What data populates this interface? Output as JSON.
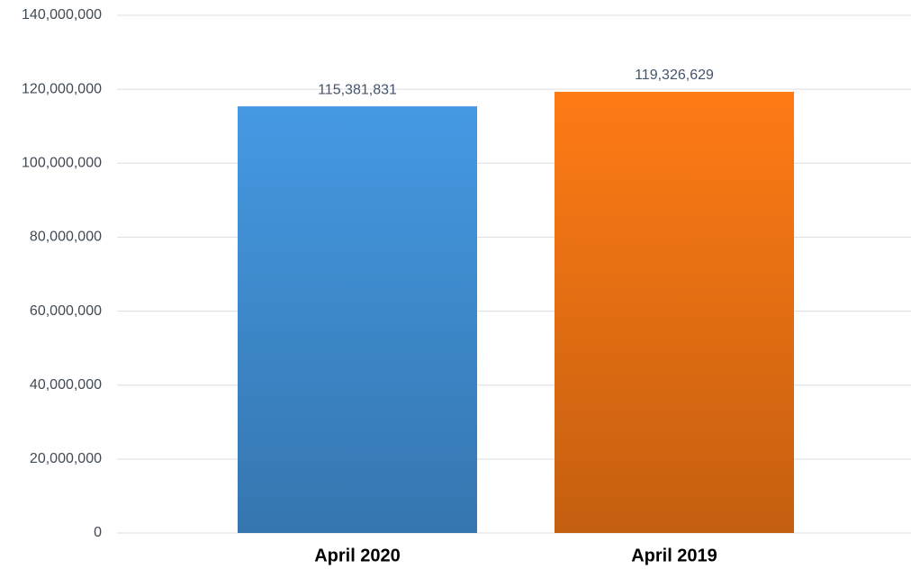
{
  "chart_data": {
    "type": "bar",
    "categories": [
      "April 2020",
      "April 2019"
    ],
    "values": [
      115381831,
      119326629
    ],
    "value_labels": [
      "115,381,831",
      "119,326,629"
    ],
    "colors": [
      "#4599e3",
      "#ff7b15"
    ],
    "ylim": [
      0,
      140000000
    ],
    "yticks": [
      0,
      {
        "value": 20000000,
        "label": "20,000,000"
      },
      {
        "value": 40000000,
        "label": "40,000,000"
      },
      {
        "value": 60000000,
        "label": "60,000,000"
      },
      {
        "value": 80000000,
        "label": "80,000,000"
      },
      {
        "value": 100000000,
        "label": "100,000,000"
      },
      {
        "value": 120000000,
        "label": "120,000,000"
      },
      {
        "value": 140000000,
        "label": "140,000,000"
      }
    ],
    "grid": true
  }
}
